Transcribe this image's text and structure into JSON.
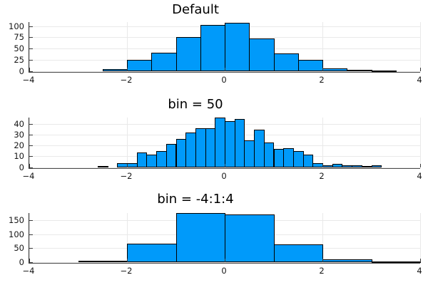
{
  "figure": {
    "background": "#ffffff"
  },
  "style": {
    "bar_fill": "#009AFA",
    "bar_stroke": "#000000",
    "grid_color": "#e9e9e9",
    "axis_color": "#3a3a3a",
    "tick_label_color": "#161616",
    "title_color": "#000000"
  },
  "chart_data": [
    {
      "type": "bar",
      "subtype": "histogram",
      "title": "Default",
      "xlabel": "",
      "ylabel": "",
      "legend": "none",
      "grid": true,
      "bin_start": -2.5,
      "bin_width": 0.5,
      "values": [
        5,
        26,
        41,
        77,
        103,
        108,
        73,
        40,
        25,
        7,
        3,
        2
      ],
      "xlim": [
        -4,
        4
      ],
      "ylim": [
        0,
        110
      ],
      "xticks": [
        -4,
        -2,
        0,
        2,
        4
      ],
      "xtick_labels": [
        "−4",
        "−2",
        "0",
        "2",
        "4"
      ],
      "yticks": [
        0,
        25,
        50,
        75,
        100
      ],
      "ytick_labels": [
        "0",
        "25",
        "50",
        "75",
        "100"
      ]
    },
    {
      "type": "bar",
      "subtype": "histogram",
      "title": "bin = 50",
      "xlabel": "",
      "ylabel": "",
      "legend": "none",
      "grid": true,
      "bin_start": -2.6,
      "bin_width": 0.2,
      "values": [
        1,
        0,
        4,
        4,
        14,
        12,
        15,
        22,
        26,
        32,
        36,
        36,
        46,
        43,
        45,
        25,
        35,
        23,
        17,
        18,
        15,
        12,
        4,
        2,
        3,
        2,
        2,
        1,
        2
      ],
      "xlim": [
        -4,
        4
      ],
      "ylim": [
        0,
        46
      ],
      "xticks": [
        -4,
        -2,
        0,
        2,
        4
      ],
      "xtick_labels": [
        "−4",
        "−2",
        "0",
        "2",
        "4"
      ],
      "yticks": [
        0,
        10,
        20,
        30,
        40
      ],
      "ytick_labels": [
        "0",
        "10",
        "20",
        "30",
        "40"
      ]
    },
    {
      "type": "bar",
      "subtype": "histogram",
      "title": "bin = -4:1:4",
      "xlabel": "",
      "ylabel": "",
      "legend": "none",
      "grid": true,
      "bin_start": -4,
      "bin_width": 1,
      "values": [
        0,
        6,
        67,
        178,
        173,
        65,
        10,
        2
      ],
      "xlim": [
        -4,
        4
      ],
      "ylim": [
        0,
        178
      ],
      "xticks": [
        -4,
        -2,
        0,
        2,
        4
      ],
      "xtick_labels": [
        "−4",
        "−2",
        "0",
        "2",
        "4"
      ],
      "yticks": [
        0,
        50,
        100,
        150
      ],
      "ytick_labels": [
        "0",
        "50",
        "100",
        "150"
      ]
    }
  ]
}
